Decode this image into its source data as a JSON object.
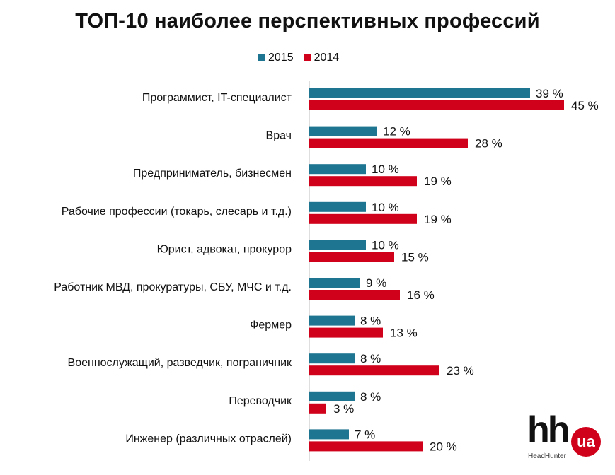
{
  "page": {
    "title": "ТОП-10 наиболее перспективных профессий"
  },
  "legend": [
    {
      "name": "2015",
      "color": "#1e7591"
    },
    {
      "name": "2014",
      "color": "#d0021b"
    }
  ],
  "logo": {
    "text": "hh",
    "badge": "ua",
    "subtitle": "HeadHunter"
  },
  "chart_data": {
    "type": "bar",
    "orientation": "horizontal",
    "title": "ТОП-10 наиболее перспективных профессий",
    "value_suffix": " %",
    "categories": [
      "Программист, IT-специалист",
      "Врач",
      "Предприниматель, бизнесмен",
      "Рабочие профессии (токарь, слесарь и т.д.)",
      "Юрист, адвокат, прокурор",
      "Работник МВД, прокуратуры, СБУ, МЧС и т.д.",
      "Фермер",
      "Военнослужащий, разведчик, пограничник",
      "Переводчик",
      "Инженер (различных отраслей)"
    ],
    "series": [
      {
        "name": "2015",
        "color": "#1e7591",
        "values": [
          39,
          12,
          10,
          10,
          10,
          9,
          8,
          8,
          8,
          7
        ]
      },
      {
        "name": "2014",
        "color": "#d0021b",
        "values": [
          45,
          28,
          19,
          19,
          15,
          16,
          13,
          23,
          3,
          20
        ]
      }
    ],
    "xlim": [
      0,
      50
    ]
  }
}
